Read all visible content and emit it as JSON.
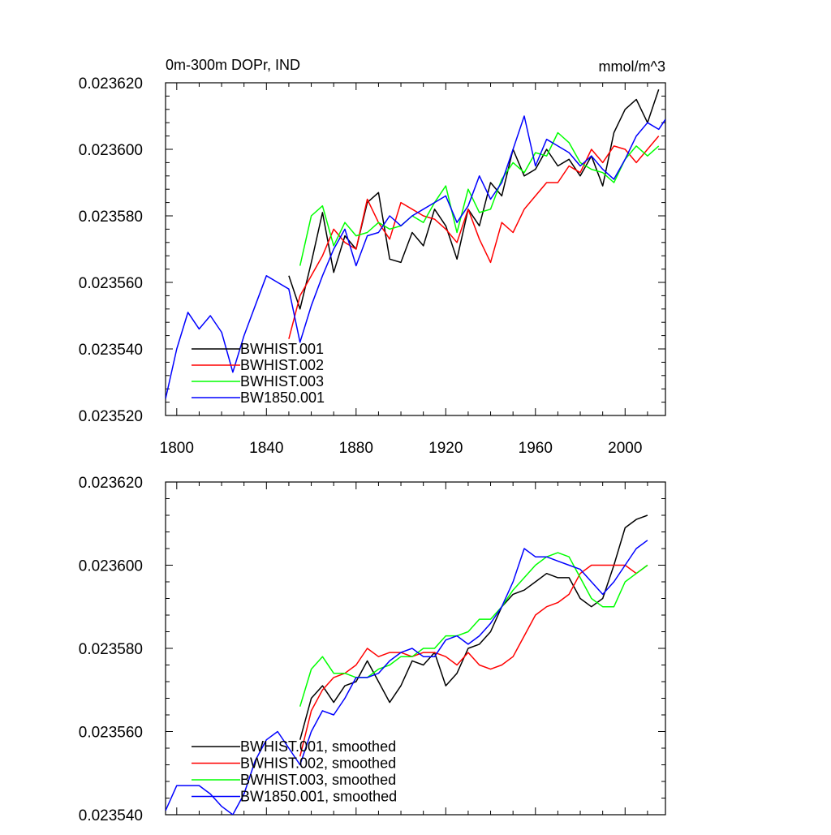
{
  "chart_data": [
    {
      "type": "line",
      "title": "0m-300m DOPr, IND",
      "units": "mmol/m^3",
      "xlim": [
        1795,
        2018
      ],
      "ylim": [
        0.02352,
        0.02362
      ],
      "xticks": [
        1800,
        1840,
        1880,
        1920,
        1960,
        2000
      ],
      "yticks": [
        0.02352,
        0.02354,
        0.02356,
        0.02358,
        0.0236,
        0.02362
      ],
      "ytick_labels": [
        "0.023520",
        "0.023540",
        "0.023560",
        "0.023580",
        "0.023600",
        "0.023620"
      ],
      "legend_position": "lower-left",
      "grid": false,
      "series": [
        {
          "name": "BWHIST.001",
          "color": "#000000",
          "x": [
            1850,
            1855,
            1860,
            1865,
            1870,
            1875,
            1880,
            1885,
            1890,
            1895,
            1900,
            1905,
            1910,
            1915,
            1920,
            1925,
            1930,
            1935,
            1940,
            1945,
            1950,
            1955,
            1960,
            1965,
            1970,
            1975,
            1980,
            1985,
            1990,
            1995,
            2000,
            2005,
            2010,
            2015
          ],
          "y": [
            0.023562,
            0.023552,
            0.023566,
            0.023581,
            0.023563,
            0.023574,
            0.02357,
            0.023584,
            0.023587,
            0.023567,
            0.023566,
            0.023575,
            0.023571,
            0.023582,
            0.023577,
            0.023567,
            0.023582,
            0.023577,
            0.02359,
            0.023586,
            0.0236,
            0.023592,
            0.023594,
            0.0236,
            0.023595,
            0.023597,
            0.023592,
            0.023598,
            0.023589,
            0.023605,
            0.023612,
            0.023615,
            0.023608,
            0.023618
          ]
        },
        {
          "name": "BWHIST.002",
          "color": "#ff0000",
          "x": [
            1850,
            1855,
            1860,
            1865,
            1870,
            1875,
            1880,
            1885,
            1890,
            1895,
            1900,
            1905,
            1910,
            1915,
            1920,
            1925,
            1930,
            1935,
            1940,
            1945,
            1950,
            1955,
            1960,
            1965,
            1970,
            1975,
            1980,
            1985,
            1990,
            1995,
            2000,
            2005,
            2010,
            2015
          ],
          "y": [
            0.023543,
            0.023556,
            0.023562,
            0.023568,
            0.023576,
            0.023572,
            0.02357,
            0.023585,
            0.023578,
            0.023573,
            0.023584,
            0.023582,
            0.02358,
            0.023579,
            0.023576,
            0.023572,
            0.023582,
            0.023573,
            0.023566,
            0.023578,
            0.023575,
            0.023582,
            0.023586,
            0.02359,
            0.02359,
            0.023595,
            0.023593,
            0.0236,
            0.023596,
            0.023601,
            0.0236,
            0.023596,
            0.0236,
            0.023604
          ]
        },
        {
          "name": "BWHIST.003",
          "color": "#00ff00",
          "x": [
            1855,
            1860,
            1865,
            1870,
            1875,
            1880,
            1885,
            1890,
            1895,
            1900,
            1905,
            1910,
            1915,
            1920,
            1925,
            1930,
            1935,
            1940,
            1945,
            1950,
            1955,
            1960,
            1965,
            1970,
            1975,
            1980,
            1985,
            1990,
            1995,
            2000,
            2005,
            2010,
            2015
          ],
          "y": [
            0.023565,
            0.02358,
            0.023583,
            0.023571,
            0.023578,
            0.023574,
            0.023575,
            0.023578,
            0.023576,
            0.023577,
            0.02358,
            0.023578,
            0.023584,
            0.023589,
            0.023575,
            0.023588,
            0.023581,
            0.023582,
            0.023591,
            0.023596,
            0.023593,
            0.023599,
            0.023598,
            0.023605,
            0.023602,
            0.023596,
            0.023594,
            0.023593,
            0.02359,
            0.023597,
            0.023601,
            0.023598,
            0.023601
          ]
        },
        {
          "name": "BW1850.001",
          "color": "#0000ff",
          "x": [
            1795,
            1800,
            1805,
            1810,
            1815,
            1820,
            1825,
            1830,
            1835,
            1840,
            1845,
            1850,
            1855,
            1860,
            1865,
            1870,
            1875,
            1880,
            1885,
            1890,
            1895,
            1900,
            1905,
            1910,
            1915,
            1920,
            1925,
            1930,
            1935,
            1940,
            1945,
            1950,
            1955,
            1960,
            1965,
            1970,
            1975,
            1980,
            1985,
            1990,
            1995,
            2000,
            2005,
            2010,
            2015,
            2018
          ],
          "y": [
            0.023525,
            0.02354,
            0.023551,
            0.023546,
            0.02355,
            0.023545,
            0.023533,
            0.023544,
            0.023553,
            0.023562,
            0.02356,
            0.023558,
            0.023542,
            0.023553,
            0.023562,
            0.02357,
            0.023576,
            0.023565,
            0.023574,
            0.023575,
            0.02358,
            0.023577,
            0.02358,
            0.023582,
            0.023584,
            0.023586,
            0.023578,
            0.023583,
            0.023592,
            0.023585,
            0.02359,
            0.0236,
            0.02361,
            0.023595,
            0.023603,
            0.023601,
            0.023599,
            0.023595,
            0.023598,
            0.023594,
            0.023591,
            0.023597,
            0.023604,
            0.023608,
            0.023606,
            0.023609
          ]
        }
      ]
    },
    {
      "type": "line",
      "title": "",
      "xlim": [
        1795,
        2018
      ],
      "ylim": [
        0.02354,
        0.02362
      ],
      "xticks": [
        1800,
        1840,
        1880,
        1920,
        1960,
        2000
      ],
      "yticks": [
        0.02354,
        0.02356,
        0.02358,
        0.0236,
        0.02362
      ],
      "ytick_labels": [
        "0.023540",
        "0.023560",
        "0.023580",
        "0.023600",
        "0.023620"
      ],
      "legend_position": "lower-left",
      "grid": false,
      "series": [
        {
          "name": "BWHIST.001, smoothed",
          "color": "#000000",
          "x": [
            1855,
            1860,
            1865,
            1870,
            1875,
            1880,
            1885,
            1890,
            1895,
            1900,
            1905,
            1910,
            1915,
            1920,
            1925,
            1930,
            1935,
            1940,
            1945,
            1950,
            1955,
            1960,
            1965,
            1970,
            1975,
            1980,
            1985,
            1990,
            1995,
            2000,
            2005,
            2010
          ],
          "y": [
            0.023558,
            0.023568,
            0.023571,
            0.023567,
            0.023571,
            0.023572,
            0.023577,
            0.023572,
            0.023567,
            0.023571,
            0.023577,
            0.023576,
            0.023579,
            0.023571,
            0.023574,
            0.02358,
            0.023581,
            0.023584,
            0.02359,
            0.023593,
            0.023594,
            0.023596,
            0.023598,
            0.023597,
            0.023597,
            0.023592,
            0.02359,
            0.023592,
            0.0236,
            0.023609,
            0.023611,
            0.023612
          ]
        },
        {
          "name": "BWHIST.002, smoothed",
          "color": "#ff0000",
          "x": [
            1855,
            1860,
            1865,
            1870,
            1875,
            1880,
            1885,
            1890,
            1895,
            1900,
            1905,
            1910,
            1915,
            1920,
            1925,
            1930,
            1935,
            1940,
            1945,
            1950,
            1955,
            1960,
            1965,
            1970,
            1975,
            1980,
            1985,
            1990,
            1995,
            2000,
            2005,
            2010
          ],
          "y": [
            0.023554,
            0.023565,
            0.02357,
            0.023573,
            0.023574,
            0.023576,
            0.02358,
            0.023578,
            0.023579,
            0.023579,
            0.023578,
            0.023579,
            0.023579,
            0.023578,
            0.023576,
            0.023579,
            0.023576,
            0.023575,
            0.023576,
            0.023578,
            0.023583,
            0.023588,
            0.02359,
            0.023591,
            0.023593,
            0.023598,
            0.0236,
            0.0236,
            0.0236,
            0.0236,
            0.023598,
            0.0236
          ]
        },
        {
          "name": "BWHIST.003, smoothed",
          "color": "#00ff00",
          "x": [
            1855,
            1860,
            1865,
            1870,
            1875,
            1880,
            1885,
            1890,
            1895,
            1900,
            1905,
            1910,
            1915,
            1920,
            1925,
            1930,
            1935,
            1940,
            1945,
            1950,
            1955,
            1960,
            1965,
            1970,
            1975,
            1980,
            1985,
            1990,
            1995,
            2000,
            2005,
            2010
          ],
          "y": [
            0.023566,
            0.023575,
            0.023578,
            0.023574,
            0.023574,
            0.023573,
            0.023573,
            0.023575,
            0.023576,
            0.023578,
            0.023578,
            0.02358,
            0.02358,
            0.023583,
            0.023583,
            0.023584,
            0.023587,
            0.023587,
            0.02359,
            0.023594,
            0.023597,
            0.0236,
            0.023602,
            0.023603,
            0.023602,
            0.023597,
            0.023592,
            0.02359,
            0.02359,
            0.023596,
            0.023598,
            0.0236
          ]
        },
        {
          "name": "BW1850.001, smoothed",
          "color": "#0000ff",
          "x": [
            1795,
            1800,
            1805,
            1810,
            1815,
            1820,
            1825,
            1830,
            1835,
            1840,
            1845,
            1850,
            1855,
            1860,
            1865,
            1870,
            1875,
            1880,
            1885,
            1890,
            1895,
            1900,
            1905,
            1910,
            1915,
            1920,
            1925,
            1930,
            1935,
            1940,
            1945,
            1950,
            1955,
            1960,
            1965,
            1970,
            1975,
            1980,
            1985,
            1990,
            1995,
            2000,
            2005,
            2010
          ],
          "y": [
            0.023541,
            0.023547,
            0.023547,
            0.023547,
            0.023545,
            0.023542,
            0.02354,
            0.023545,
            0.023553,
            0.023558,
            0.02356,
            0.023556,
            0.023552,
            0.02356,
            0.023565,
            0.023564,
            0.023568,
            0.023573,
            0.023573,
            0.023574,
            0.023577,
            0.023579,
            0.02358,
            0.023578,
            0.023578,
            0.023582,
            0.023583,
            0.023581,
            0.023583,
            0.023586,
            0.02359,
            0.023596,
            0.023604,
            0.023602,
            0.023602,
            0.023601,
            0.0236,
            0.023599,
            0.023596,
            0.023593,
            0.023596,
            0.0236,
            0.023604,
            0.023606
          ]
        }
      ]
    }
  ]
}
